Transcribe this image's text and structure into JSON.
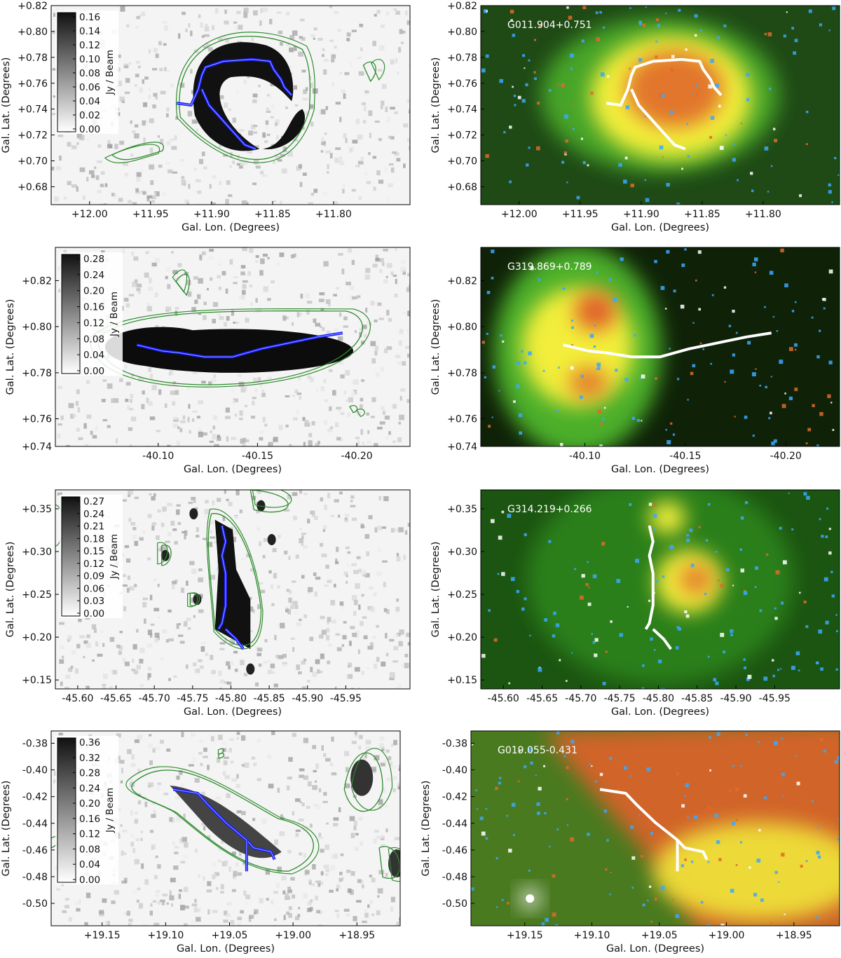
{
  "figure": {
    "colors": {
      "contour": "#2e8b2e",
      "spine_left": "#1a1aff",
      "spine_right": "#ffffff",
      "label_right": "#ffffff",
      "ir_green": "#4caf2a",
      "ir_yellow": "#f2ee3a",
      "ir_red": "#e0622a",
      "star_blue": "#3aa8ff"
    },
    "rows": [
      {
        "source_label": "G011.904+0.751",
        "xlabel": "Gal. Lon. (Degrees)",
        "ylabel": "Gal. Lat. (Degrees)",
        "xticks": [
          "+12.00",
          "+11.95",
          "+11.90",
          "+11.85",
          "+11.80"
        ],
        "yticks": [
          "+0.82",
          "+0.80",
          "+0.78",
          "+0.76",
          "+0.74",
          "+0.72",
          "+0.70",
          "+0.68"
        ],
        "colorbar_ticks": [
          "0.16",
          "0.14",
          "0.12",
          "0.10",
          "0.08",
          "0.06",
          "0.04",
          "0.02",
          "0.00"
        ],
        "colorbar_label": "Jy / Beam"
      },
      {
        "source_label": "G319.869+0.789",
        "xlabel": "Gal. Lon. (Degrees)",
        "ylabel": "Gal. Lat. (Degrees)",
        "xticks": [
          "-40.10",
          "-40.15",
          "-40.20"
        ],
        "yticks": [
          "+0.82",
          "+0.80",
          "+0.78",
          "+0.76",
          "+0.74"
        ],
        "colorbar_ticks": [
          "0.28",
          "0.24",
          "0.20",
          "0.16",
          "0.12",
          "0.08",
          "0.04",
          "0.00"
        ],
        "colorbar_label": "Jy / Beam"
      },
      {
        "source_label": "G314.219+0.266",
        "xlabel": "Gal. Lon. (Degrees)",
        "ylabel": "Gal. Lat. (Degrees)",
        "xticks": [
          "-45.60",
          "-45.65",
          "-45.70",
          "-45.75",
          "-45.80",
          "-45.85",
          "-45.90",
          "-45.95"
        ],
        "yticks": [
          "+0.35",
          "+0.30",
          "+0.25",
          "+0.20",
          "+0.15"
        ],
        "colorbar_ticks": [
          "0.27",
          "0.24",
          "0.21",
          "0.18",
          "0.15",
          "0.12",
          "0.09",
          "0.06",
          "0.03",
          "0.00"
        ],
        "colorbar_label": "Jy / Beam"
      },
      {
        "source_label": "G019.055-0.431",
        "xlabel": "Gal. Lon. (Degrees)",
        "ylabel": "Gal. Lat. (Degrees)",
        "xticks": [
          "+19.15",
          "+19.10",
          "+19.05",
          "+19.00",
          "+18.95"
        ],
        "yticks": [
          "-0.38",
          "-0.40",
          "-0.42",
          "-0.44",
          "-0.46",
          "-0.48",
          "-0.50"
        ],
        "colorbar_ticks": [
          "0.36",
          "0.32",
          "0.28",
          "0.24",
          "0.20",
          "0.16",
          "0.12",
          "0.08",
          "0.04",
          "0.00"
        ],
        "colorbar_label": "Jy / Beam"
      }
    ]
  }
}
